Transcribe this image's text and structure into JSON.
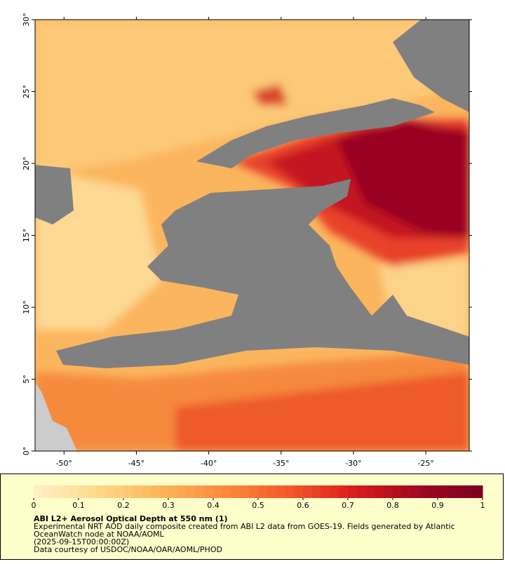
{
  "map": {
    "xlim": [
      -52,
      -22
    ],
    "ylim": [
      0,
      30
    ],
    "xticks": [
      {
        "value": -50,
        "label": "-50°"
      },
      {
        "value": -45,
        "label": "-45°"
      },
      {
        "value": -40,
        "label": "-40°"
      },
      {
        "value": -35,
        "label": "-35°"
      },
      {
        "value": -30,
        "label": "-30°"
      },
      {
        "value": -25,
        "label": "-25°"
      }
    ],
    "yticks": [
      {
        "value": 0,
        "label": "0°"
      },
      {
        "value": 5,
        "label": "5°"
      },
      {
        "value": 10,
        "label": "10°"
      },
      {
        "value": 15,
        "label": "15°"
      },
      {
        "value": 20,
        "label": "20°"
      },
      {
        "value": 25,
        "label": "25°"
      },
      {
        "value": 30,
        "label": "30°"
      }
    ]
  },
  "colorbar": {
    "lim": [
      0,
      1
    ],
    "ticks": [
      0,
      0.1,
      0.2,
      0.3,
      0.4,
      0.5,
      0.6,
      0.7,
      0.8,
      0.9,
      1
    ],
    "colors": [
      "#fff1c6",
      "#fed98b",
      "#fdb456",
      "#fc8a3c",
      "#f4562a",
      "#d81d1c",
      "#a10722",
      "#7a0020"
    ]
  },
  "caption": {
    "title": "ABI L2+ Aerosol Optical Depth at 550 nm (1)",
    "lines": [
      "Experimental NRT AOD daily composite created from ABI L2 data from GOES-19. Fields generated by Atlantic",
      "OceanWatch node at NOAA/AOML",
      "(2025-09-15T00:00:00Z)",
      "Data courtesy of USDOC/NOAA/OAR/AOML/PHOD"
    ]
  }
}
